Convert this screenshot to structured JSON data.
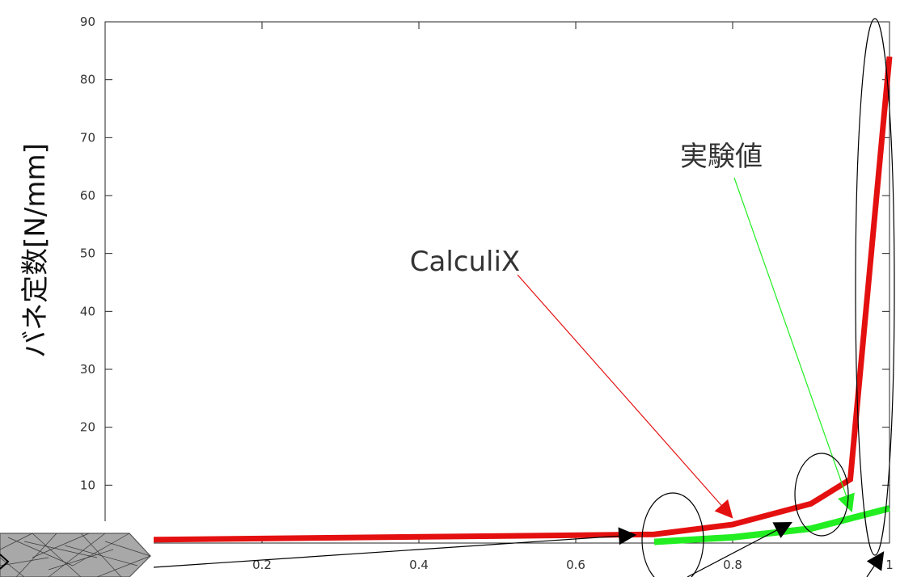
{
  "chart_data": {
    "type": "line",
    "ylabel": "バネ定数[N/mm]",
    "xlabel": "",
    "xlim": [
      0,
      1
    ],
    "ylim": [
      0,
      90
    ],
    "x_ticks": [
      "0.2",
      "0.4",
      "0.6",
      "0.8",
      "1"
    ],
    "y_ticks": [
      "10",
      "20",
      "30",
      "40",
      "50",
      "60",
      "70",
      "80",
      "90"
    ],
    "grid": false,
    "series": [
      {
        "name": "CalculiX",
        "color": "#e41010",
        "points": [
          [
            0.0,
            0.5
          ],
          [
            0.7,
            1.5
          ],
          [
            0.8,
            3.2
          ],
          [
            0.9,
            6.8
          ],
          [
            0.95,
            11
          ],
          [
            1.0,
            84
          ]
        ]
      },
      {
        "name": "実験値",
        "color": "#22ee22",
        "points": [
          [
            0.7,
            0.2
          ],
          [
            0.8,
            1.0
          ],
          [
            0.9,
            2.5
          ],
          [
            1.0,
            6
          ]
        ]
      }
    ],
    "annotations": [
      {
        "text": "CalculiX",
        "color": "#e41010"
      },
      {
        "text": "実験値",
        "color": "#22ee22"
      }
    ]
  }
}
